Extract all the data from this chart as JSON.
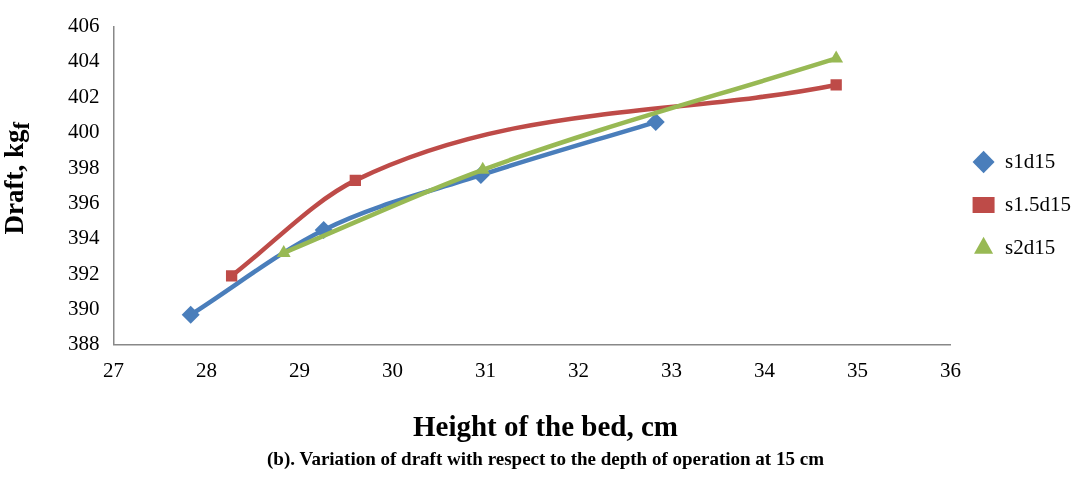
{
  "chart_data": {
    "type": "line",
    "xlabel": "Height of the bed, cm",
    "ylabel": "Draft, kg$_{f}$",
    "annotations": [
      "(b). Variation of draft with respect to the depth of operation at 15 cm"
    ],
    "xlim": [
      27,
      36
    ],
    "xticks": [
      27,
      28,
      29,
      30,
      31,
      32,
      33,
      34,
      35,
      36
    ],
    "ylim": [
      388,
      406
    ],
    "yticks": [
      388,
      390,
      392,
      394,
      396,
      398,
      400,
      402,
      404,
      406
    ],
    "grid": false,
    "legend": "right",
    "line_style": "solid",
    "series": [
      {
        "name": "s1d15",
        "color": "#4a7ebb",
        "marker": "diamond",
        "x": [
          27.83,
          29.26,
          30.95,
          32.83
        ],
        "values": [
          389.7,
          394.5,
          397.6,
          400.6
        ]
      },
      {
        "name": "s1.5d15",
        "color": "#be4b48",
        "marker": "square",
        "x": [
          28.27,
          29.6,
          34.77
        ],
        "values": [
          391.9,
          397.3,
          402.7
        ]
      },
      {
        "name": "s2d15",
        "color": "#98b954",
        "marker": "triangle",
        "x": [
          28.83,
          30.97,
          34.77
        ],
        "values": [
          393.2,
          397.9,
          404.2
        ]
      }
    ]
  }
}
